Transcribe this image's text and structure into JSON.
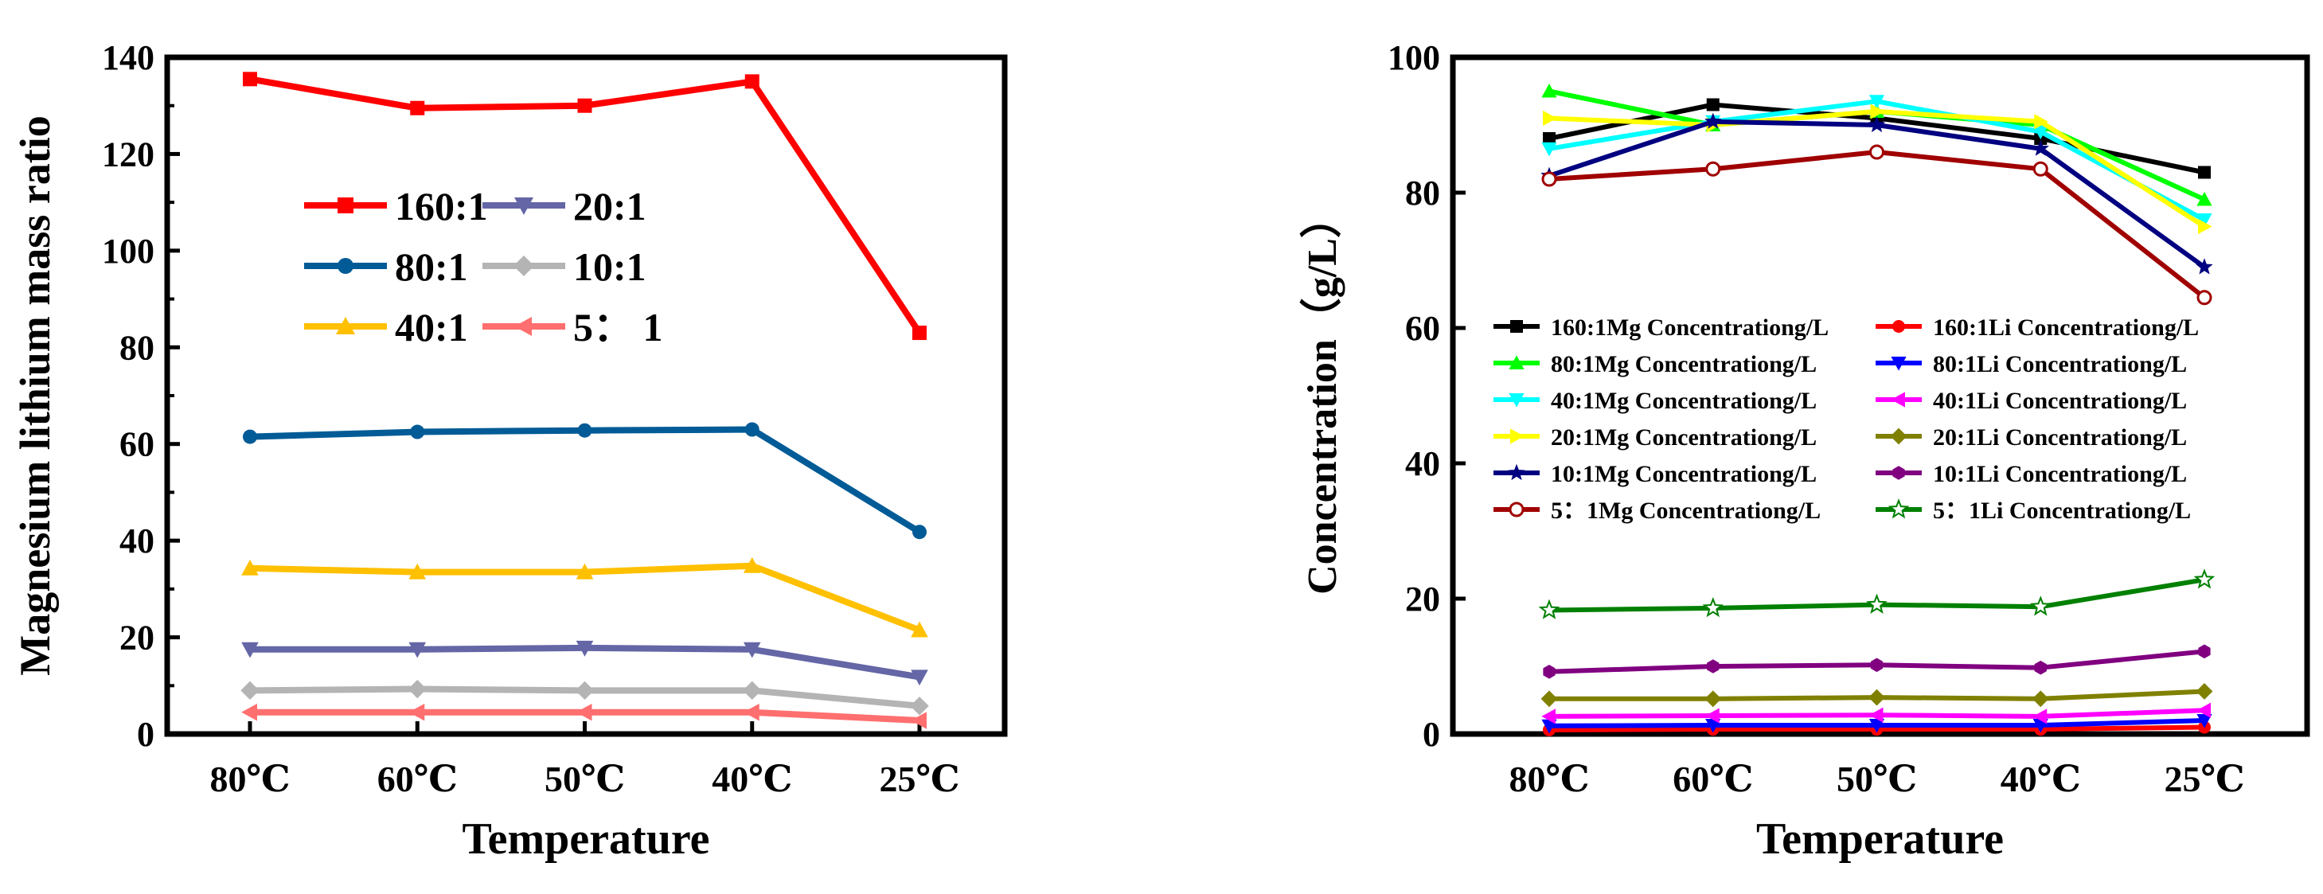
{
  "chart_data": [
    {
      "type": "line",
      "xlabel": "Temperature",
      "ylabel": "Magnesium lithium mass ratio",
      "categories": [
        "80℃",
        "60℃",
        "50℃",
        "40℃",
        "25℃"
      ],
      "ylim": [
        0,
        140
      ],
      "yticks": [
        "0",
        "20",
        "40",
        "60",
        "80",
        "100",
        "120",
        "140"
      ],
      "legend_position": "upper-middle",
      "series": [
        {
          "name": "160:1",
          "color": "#ff0000",
          "marker": "square",
          "values": [
            135.5,
            129.5,
            130,
            135,
            83
          ]
        },
        {
          "name": "80:1",
          "color": "#005b96",
          "marker": "circle",
          "values": [
            61.5,
            62.5,
            62.8,
            63,
            41.8
          ]
        },
        {
          "name": "40:1",
          "color": "#ffc000",
          "marker": "triangle-up",
          "values": [
            34.3,
            33.5,
            33.5,
            34.8,
            21.5
          ]
        },
        {
          "name": "20:1",
          "color": "#6466a6",
          "marker": "triangle-down",
          "values": [
            17.5,
            17.5,
            17.8,
            17.5,
            11.8
          ]
        },
        {
          "name": "10:1",
          "color": "#b4b4b4",
          "marker": "diamond",
          "values": [
            9,
            9.3,
            9,
            9,
            5.8
          ]
        },
        {
          "name": "5： 1",
          "color": "#ff6f6f",
          "marker": "triangle-left",
          "values": [
            4.5,
            4.5,
            4.5,
            4.5,
            2.8
          ]
        }
      ]
    },
    {
      "type": "line",
      "xlabel": "Temperature",
      "ylabel": "Concentration（g/L）",
      "categories": [
        "80℃",
        "60℃",
        "50℃",
        "40℃",
        "25℃"
      ],
      "ylim": [
        0,
        100
      ],
      "yticks": [
        "0",
        "20",
        "40",
        "60",
        "80",
        "100"
      ],
      "legend_position": "center",
      "series": [
        {
          "name": "160:1Mg Concentrationg/L",
          "color": "#000000",
          "marker": "square",
          "values": [
            88,
            93,
            91,
            88,
            83
          ]
        },
        {
          "name": "80:1Mg Concentrationg/L",
          "color": "#00ff00",
          "marker": "triangle-up",
          "values": [
            95,
            90,
            92,
            90,
            79
          ]
        },
        {
          "name": "40:1Mg Concentrationg/L",
          "color": "#00ffff",
          "marker": "triangle-down",
          "values": [
            86.5,
            90.5,
            93.5,
            89,
            76
          ]
        },
        {
          "name": "20:1Mg Concentrationg/L",
          "color": "#ffff00",
          "marker": "triangle-right",
          "values": [
            91,
            90,
            92,
            90.5,
            75
          ]
        },
        {
          "name": "10:1Mg Concentrationg/L",
          "color": "#000080",
          "marker": "star",
          "values": [
            82.5,
            90.5,
            90,
            86.5,
            69
          ]
        },
        {
          "name": "5：1Mg Concentrationg/L",
          "color": "#a00000",
          "marker": "circle-open",
          "values": [
            82,
            83.5,
            86,
            83.5,
            64.5
          ]
        },
        {
          "name": "160:1Li Concentrationg/L",
          "color": "#ff0000",
          "marker": "circle",
          "values": [
            0.6,
            0.7,
            0.7,
            0.7,
            1.0
          ]
        },
        {
          "name": "80:1Li Concentrationg/L",
          "color": "#0000ff",
          "marker": "triangle-down",
          "values": [
            1.2,
            1.3,
            1.3,
            1.3,
            2.0
          ]
        },
        {
          "name": "40:1Li Concentrationg/L",
          "color": "#ff00ff",
          "marker": "triangle-left",
          "values": [
            2.6,
            2.7,
            2.8,
            2.6,
            3.5
          ]
        },
        {
          "name": "20:1Li Concentrationg/L",
          "color": "#808000",
          "marker": "diamond",
          "values": [
            5.2,
            5.2,
            5.4,
            5.2,
            6.3
          ]
        },
        {
          "name": "10:1Li Concentrationg/L",
          "color": "#800080",
          "marker": "hexagon",
          "values": [
            9.2,
            10,
            10.2,
            9.8,
            12.2
          ]
        },
        {
          "name": "5：1Li Concentrationg/L",
          "color": "#008000",
          "marker": "star-open",
          "values": [
            18.3,
            18.6,
            19.1,
            18.8,
            22.8
          ]
        }
      ]
    }
  ]
}
